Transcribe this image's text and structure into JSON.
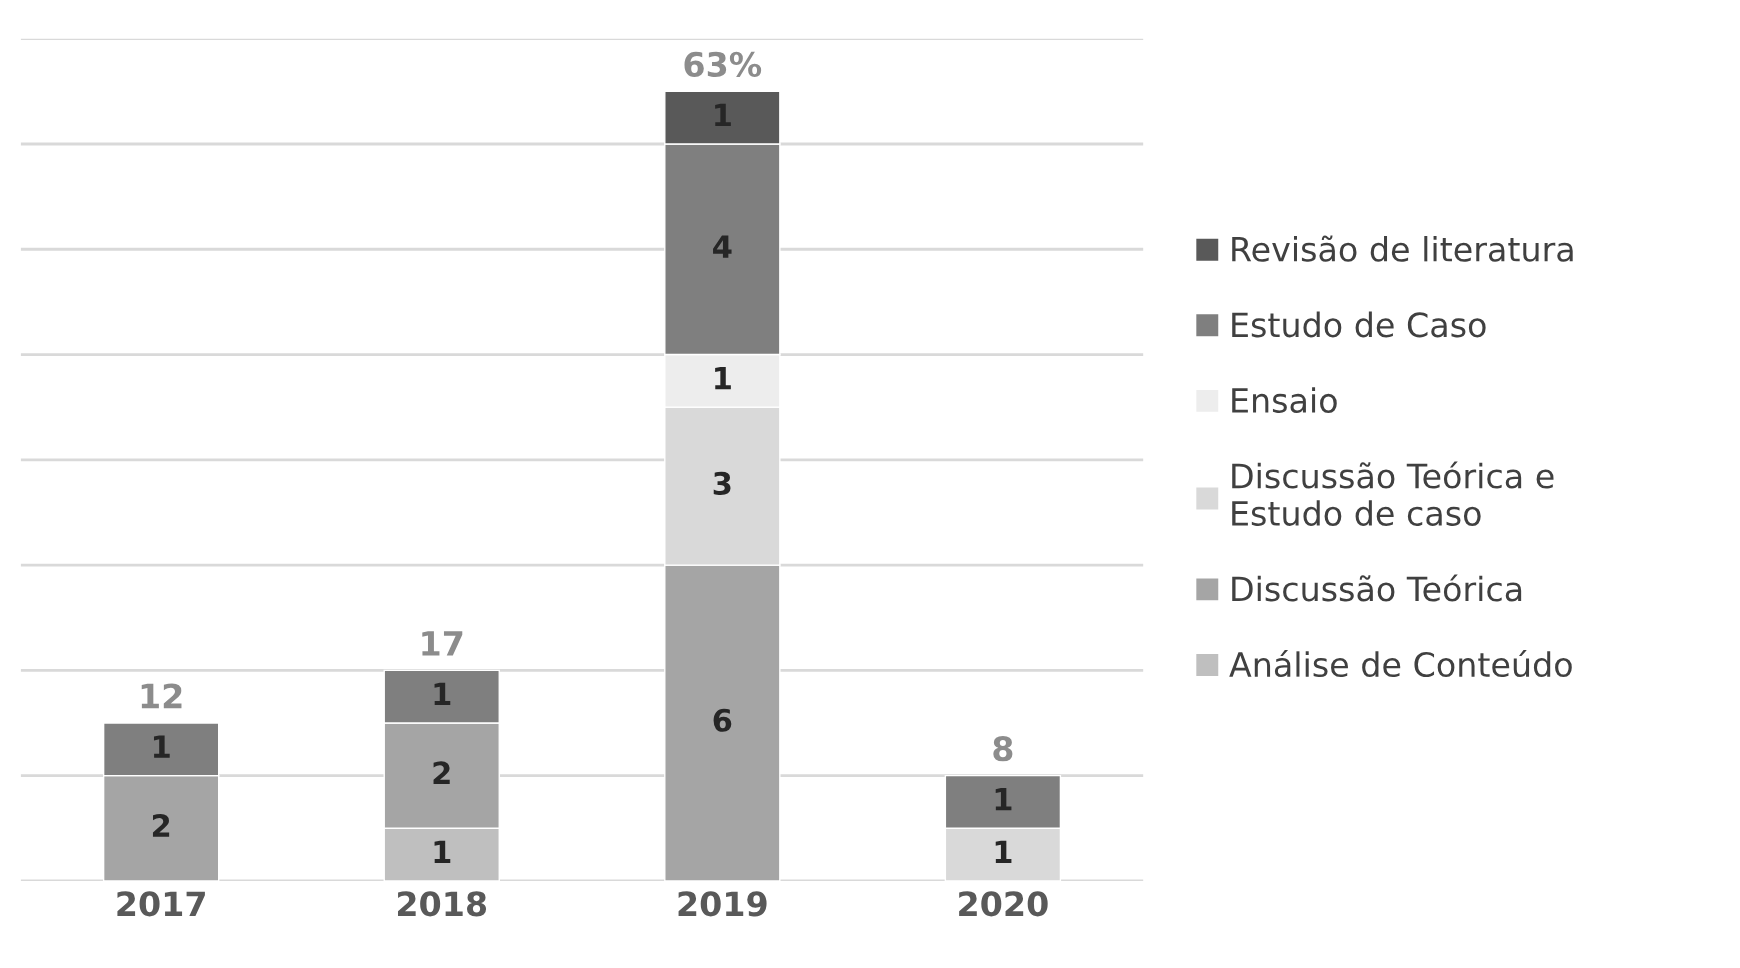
{
  "chart_data": {
    "type": "bar",
    "stacked": true,
    "categories": [
      "2017",
      "2018",
      "2019",
      "2020"
    ],
    "series": [
      {
        "name": "Análise de Conteúdo",
        "color": "#bfbfbf",
        "values": [
          null,
          1,
          null,
          null
        ]
      },
      {
        "name": "Discussão Teórica",
        "color": "#a5a5a5",
        "values": [
          2,
          2,
          6,
          null
        ]
      },
      {
        "name": "Discussão Teórica e\nEstudo de caso",
        "color": "#d9d9d9",
        "values": [
          null,
          null,
          3,
          1
        ]
      },
      {
        "name": "Ensaio",
        "color": "#ededed",
        "values": [
          null,
          null,
          1,
          null
        ]
      },
      {
        "name": "Estudo de Caso",
        "color": "#7f7f7f",
        "values": [
          1,
          1,
          4,
          1
        ]
      },
      {
        "name": "Revisão de literatura",
        "color": "#595959",
        "values": [
          null,
          null,
          1,
          null
        ]
      }
    ],
    "annotations": [
      {
        "text": "12",
        "x": "2017",
        "y": 3
      },
      {
        "text": "17",
        "x": "2018",
        "y": 4
      },
      {
        "text": "63%",
        "x": "2019",
        "y": 15
      },
      {
        "text": "8",
        "x": "2020",
        "y": 2
      }
    ],
    "data_labels": true,
    "ylim": [
      0,
      16
    ],
    "yticks": [
      {
        "value": 0,
        "label": null
      },
      {
        "value": 2,
        "label": null
      },
      {
        "value": 4,
        "label": null
      },
      {
        "value": 6,
        "label": null
      },
      {
        "value": 8,
        "label": null
      },
      {
        "value": 10,
        "label": null
      },
      {
        "value": 12,
        "label": null
      },
      {
        "value": 14,
        "label": null
      },
      {
        "value": 16,
        "label": null
      }
    ],
    "tick_labels": "x",
    "grid": "y",
    "legend": "right"
  }
}
